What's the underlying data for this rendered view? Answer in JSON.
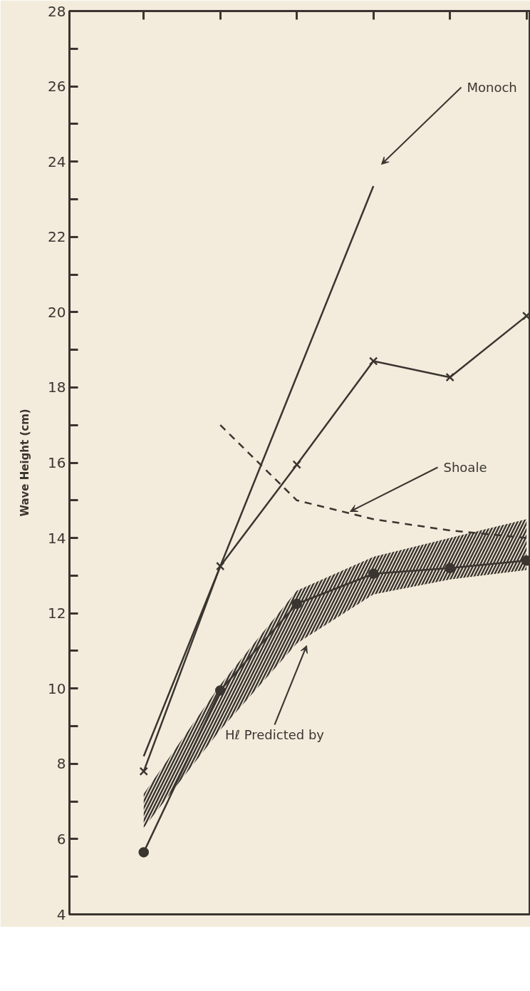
{
  "chart_data": {
    "type": "line",
    "ylabel": "Wave Height (cm)",
    "categories": [
      null,
      null,
      null,
      null,
      null,
      null
    ],
    "ylim": [
      4,
      28
    ],
    "yticks": [
      4,
      {
        "value": 5,
        "label": null
      },
      6,
      {
        "value": 7,
        "label": null
      },
      8,
      {
        "value": 9,
        "label": null
      },
      10,
      {
        "value": 11,
        "label": null
      },
      12,
      {
        "value": 13,
        "label": null
      },
      14,
      {
        "value": 15,
        "label": null
      },
      16,
      {
        "value": 17,
        "label": null
      },
      18,
      {
        "value": 19,
        "label": null
      },
      20,
      {
        "value": 21,
        "label": null
      },
      22,
      {
        "value": 23,
        "label": null
      },
      24,
      {
        "value": 25,
        "label": null
      },
      26,
      {
        "value": 27,
        "label": null
      },
      28
    ],
    "grid": false,
    "series": [
      {
        "color": "#3a3530",
        "values": [
          8.2,
          13.25,
          18.3,
          23.35,
          null,
          null
        ],
        "marker": "none",
        "line_style": "solid"
      },
      {
        "color": "#3a3530",
        "values": [
          7.8,
          13.25,
          15.95,
          18.7,
          18.27,
          19.9
        ],
        "marker": "cross",
        "line_style": "solid"
      },
      {
        "color": "#3a3530",
        "values": [
          null,
          17.0,
          15.0,
          14.5,
          14.2,
          14.0
        ],
        "marker": "none",
        "line_style": "dashed"
      },
      {
        "color": "#3a3530",
        "values": [
          5.65,
          9.95,
          12.25,
          13.05,
          13.2,
          13.4
        ],
        "lower": [
          6.3,
          8.9,
          11.2,
          12.5,
          12.9,
          13.15
        ],
        "upper": [
          7.2,
          10.1,
          12.6,
          13.5,
          14.0,
          14.5
        ],
        "marker": "circle",
        "line_style": "solid"
      }
    ],
    "annotations": [
      "Monoch",
      "Shoale",
      "Hℓ Predicted by"
    ]
  }
}
